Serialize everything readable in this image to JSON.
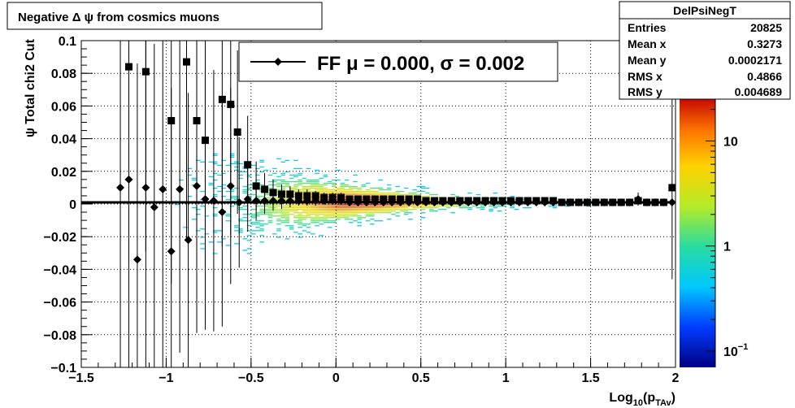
{
  "chart_data": {
    "type": "scatter",
    "title": "Negative Δ ψ from cosmics muons",
    "xlabel": "Log",
    "xlabel_sub": "10",
    "xlabel_paren_open": "(p",
    "xlabel_sub2": "TAv",
    "xlabel_paren_close": ")",
    "ylabel": "ψ  Total chi2 Cut",
    "xlim": [
      -1.5,
      2.0
    ],
    "ylim": [
      -0.1,
      0.1
    ],
    "grid": true,
    "x_ticks": [
      -1.5,
      -1.0,
      -0.5,
      0.0,
      0.5,
      1.0,
      1.5,
      2.0
    ],
    "x_tick_labels": [
      "−1.5",
      "−1",
      "−0.5",
      "0",
      "0.5",
      "1",
      "1.5",
      "2"
    ],
    "y_ticks": [
      -0.1,
      -0.08,
      -0.06,
      -0.04,
      -0.02,
      0.0,
      0.02,
      0.04,
      0.06,
      0.08,
      0.1
    ],
    "y_tick_labels": [
      "−0.1",
      "−0.08",
      "−0.06",
      "−0.04",
      "−0.02",
      "0",
      "0.02",
      "0.04",
      "0.06",
      "0.08",
      "0.1"
    ],
    "colorbar": {
      "scale": "log",
      "range": [
        0.07,
        25
      ],
      "ticks": [
        {
          "value": 0.1,
          "base": "10",
          "exp": "−1"
        },
        {
          "value": 1,
          "base": "1",
          "exp": ""
        },
        {
          "value": 10,
          "base": "10",
          "exp": ""
        }
      ]
    },
    "stats": {
      "name": "DelPsiNegT",
      "rows": [
        {
          "label": "Entries",
          "value": "20825"
        },
        {
          "label": "Mean x",
          "value": "0.3273"
        },
        {
          "label": "Mean y",
          "value": "0.0002171"
        },
        {
          "label": "RMS x",
          "value": "0.4866"
        },
        {
          "label": "RMS y",
          "value": "0.004689"
        }
      ]
    },
    "legend": {
      "placement": "top",
      "text": "FF μ =  0.000, σ =   0.002"
    },
    "fit_line": {
      "y": 0.001
    },
    "series": [
      {
        "marker": "square",
        "x": [
          -1.22,
          -1.12,
          -0.97,
          -0.88,
          -0.82,
          -0.77,
          -0.67,
          -0.62,
          -0.58,
          -0.52,
          -0.47,
          -0.42,
          -0.37,
          -0.32,
          -0.27,
          -0.22,
          -0.17,
          -0.12,
          -0.07,
          -0.02,
          0.03,
          0.08,
          0.13,
          0.18,
          0.23,
          0.28,
          0.33,
          0.38,
          0.43,
          0.48,
          0.53,
          0.58,
          0.63,
          0.68,
          0.73,
          0.78,
          0.83,
          0.88,
          0.93,
          0.98,
          1.03,
          1.08,
          1.13,
          1.18,
          1.23,
          1.28,
          1.33,
          1.38,
          1.43,
          1.48,
          1.53,
          1.58,
          1.63,
          1.68,
          1.73,
          1.78,
          1.83,
          1.88,
          1.93,
          1.98
        ],
        "y": [
          0.084,
          0.081,
          0.051,
          0.087,
          0.051,
          0.039,
          0.064,
          0.061,
          0.044,
          0.024,
          0.011,
          0.009,
          0.007,
          0.006,
          0.006,
          0.005,
          0.005,
          0.005,
          0.004,
          0.004,
          0.004,
          0.003,
          0.003,
          0.003,
          0.003,
          0.003,
          0.003,
          0.003,
          0.003,
          0.003,
          0.002,
          0.002,
          0.002,
          0.002,
          0.002,
          0.002,
          0.002,
          0.002,
          0.002,
          0.002,
          0.002,
          0.002,
          0.002,
          0.002,
          0.002,
          0.002,
          0.001,
          0.001,
          0.001,
          0.001,
          0.001,
          0.001,
          0.001,
          0.001,
          0.001,
          0.002,
          0.001,
          0.001,
          0.001,
          0.01
        ],
        "err": [
          0.12,
          0.11,
          0.1,
          0.11,
          0.09,
          0.08,
          0.09,
          0.08,
          0.05,
          0.03,
          0.015,
          0.01,
          0.008,
          0.006,
          0.005,
          0.004,
          0.004,
          0.003,
          0.003,
          0.003,
          0.003,
          0.002,
          0.002,
          0.002,
          0.002,
          0.002,
          0.002,
          0.002,
          0.002,
          0.002,
          0.002,
          0.002,
          0.002,
          0.002,
          0.002,
          0.002,
          0.002,
          0.002,
          0.002,
          0.002,
          0.002,
          0.002,
          0.002,
          0.002,
          0.002,
          0.002,
          0.002,
          0.002,
          0.002,
          0.002,
          0.002,
          0.002,
          0.002,
          0.002,
          0.002,
          0.003,
          0.002,
          0.002,
          0.002,
          0.056
        ]
      },
      {
        "marker": "diamond",
        "x": [
          -1.27,
          -1.22,
          -1.17,
          -1.12,
          -1.07,
          -1.02,
          -0.97,
          -0.92,
          -0.87,
          -0.82,
          -0.77,
          -0.72,
          -0.67,
          -0.62,
          -0.57,
          -0.52,
          -0.47,
          -0.42,
          -0.37,
          -0.32,
          -0.27,
          -0.22,
          -0.17,
          -0.12,
          -0.07,
          -0.02,
          0.03,
          0.08,
          0.13,
          0.18,
          0.23,
          0.28,
          0.33,
          0.38,
          0.43,
          0.48,
          0.53,
          0.58,
          0.63,
          0.68,
          0.73,
          0.78,
          0.83,
          0.88,
          0.93,
          0.98,
          1.03,
          1.08,
          1.13,
          1.18,
          1.23,
          1.28,
          1.33,
          1.38,
          1.43,
          1.48,
          1.53,
          1.58,
          1.63,
          1.68,
          1.73,
          1.78,
          1.83,
          1.88,
          1.93,
          1.98
        ],
        "y": [
          0.01,
          0.015,
          -0.034,
          0.01,
          -0.002,
          0.009,
          -0.029,
          0.009,
          -0.022,
          0.011,
          0.003,
          0.002,
          -0.005,
          0.011,
          0.001,
          0.003,
          0.002,
          0.002,
          0.002,
          0.002,
          0.002,
          0.002,
          0.002,
          0.002,
          0.002,
          0.002,
          0.002,
          0.001,
          0.001,
          0.001,
          0.001,
          0.001,
          0.001,
          0.001,
          0.001,
          0.001,
          0.001,
          0.001,
          0.001,
          0.001,
          0.001,
          0.001,
          0.001,
          0.001,
          0.001,
          0.001,
          0.001,
          0.001,
          0.001,
          0.001,
          0.001,
          0.001,
          0.001,
          0.001,
          0.001,
          0.001,
          0.001,
          0.001,
          0.001,
          0.001,
          0.001,
          0.003,
          0.001,
          0.001,
          0.001,
          0.001
        ],
        "err": [
          0.11,
          0.12,
          0.12,
          0.11,
          0.1,
          0.11,
          0.1,
          0.1,
          0.09,
          0.09,
          0.08,
          0.08,
          0.07,
          0.06,
          0.04,
          0.02,
          0.012,
          0.008,
          0.006,
          0.005,
          0.004,
          0.003,
          0.003,
          0.003,
          0.002,
          0.002,
          0.002,
          0.002,
          0.002,
          0.002,
          0.002,
          0.002,
          0.002,
          0.002,
          0.002,
          0.002,
          0.002,
          0.002,
          0.002,
          0.002,
          0.002,
          0.002,
          0.002,
          0.002,
          0.002,
          0.002,
          0.002,
          0.002,
          0.002,
          0.002,
          0.002,
          0.002,
          0.002,
          0.002,
          0.002,
          0.002,
          0.002,
          0.002,
          0.002,
          0.002,
          0.002,
          0.004,
          0.002,
          0.002,
          0.002,
          0.002
        ]
      }
    ]
  }
}
